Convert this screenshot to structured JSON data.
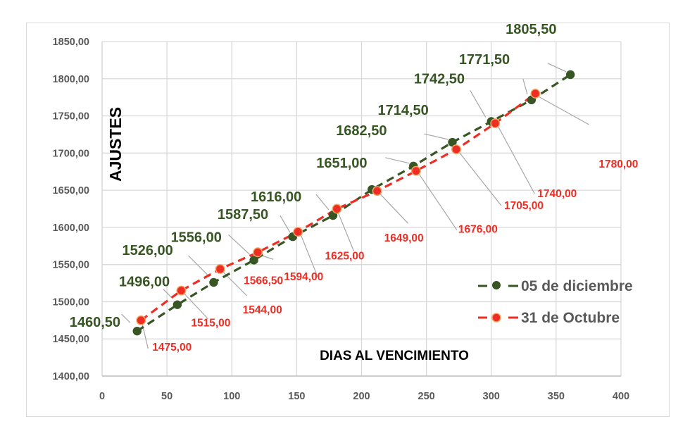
{
  "chart_data": {
    "type": "line",
    "title": "",
    "xlabel": "DIAS AL VENCIMIENTO",
    "ylabel": "AJUSTES",
    "xlim": [
      0,
      400
    ],
    "ylim": [
      1400,
      1850
    ],
    "x_ticks": [
      "0",
      "50",
      "100",
      "150",
      "200",
      "250",
      "300",
      "350",
      "400"
    ],
    "y_ticks": [
      "1400,00",
      "1450,00",
      "1500,00",
      "1550,00",
      "1600,00",
      "1650,00",
      "1700,00",
      "1750,00",
      "1800,00",
      "1850,00"
    ],
    "grid": true,
    "legend_position": "right-inside",
    "series": [
      {
        "name": "05 de diciembre",
        "color": "#375623",
        "line_style": "dashed",
        "marker": "circle",
        "x": [
          27,
          58,
          86,
          117,
          147,
          178,
          208,
          240,
          270,
          300,
          331,
          361
        ],
        "values": [
          1460.5,
          1496.0,
          1526.0,
          1556.0,
          1587.5,
          1616.0,
          1651.0,
          1682.5,
          1714.5,
          1742.5,
          1771.5,
          1805.5
        ],
        "labels": [
          "1460,50",
          "1496,00",
          "1526,00",
          "1556,00",
          "1587,50",
          "1616,00",
          "1651,00",
          "1682,50",
          "1714,50",
          "1742,50",
          "1771,50",
          "1805,50"
        ]
      },
      {
        "name": "31 de Octubre",
        "color": "#ee2d24",
        "marker_edge": "#f4a460",
        "line_style": "dashed",
        "marker": "circle",
        "x": [
          30,
          61,
          91,
          120,
          151,
          181,
          212,
          242,
          273,
          303,
          334
        ],
        "values": [
          1475.0,
          1515.0,
          1544.0,
          1566.5,
          1594.0,
          1625.0,
          1649.0,
          1676.0,
          1705.0,
          1740.0,
          1780.0
        ],
        "labels": [
          "1475,00",
          "1515,00",
          "1544,00",
          "1566,50",
          "1594,00",
          "1625,00",
          "1649,00",
          "1676,00",
          "1705,00",
          "1740,00",
          "1780,00"
        ]
      }
    ]
  },
  "legend": {
    "items": [
      {
        "label": "05 de diciembre",
        "color": "#375623"
      },
      {
        "label": "31 de Octubre",
        "color": "#ee2d24"
      }
    ]
  },
  "axes": {
    "x_title": "DIAS AL VENCIMIENTO",
    "y_title": "AJUSTES"
  }
}
